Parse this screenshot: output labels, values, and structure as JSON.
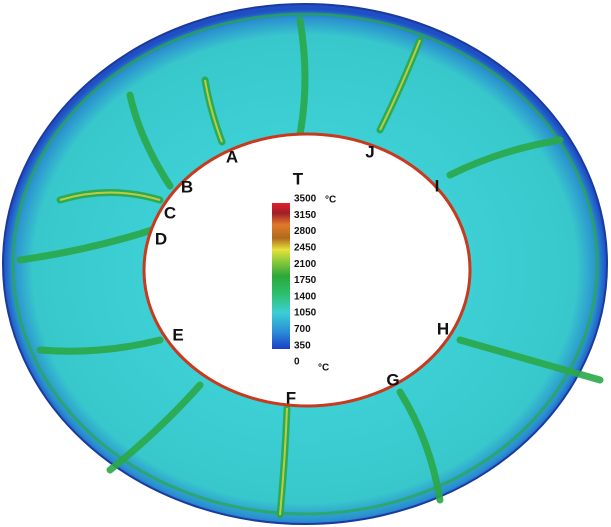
{
  "labels": [
    "A",
    "B",
    "C",
    "D",
    "E",
    "F",
    "G",
    "H",
    "I",
    "J"
  ],
  "colorbar": {
    "title": "T",
    "ticks": [
      3500,
      3150,
      2800,
      2450,
      2100,
      1750,
      1400,
      1050,
      700,
      350,
      0
    ],
    "top_unit": "°C",
    "bottom_unit": "°C"
  }
}
